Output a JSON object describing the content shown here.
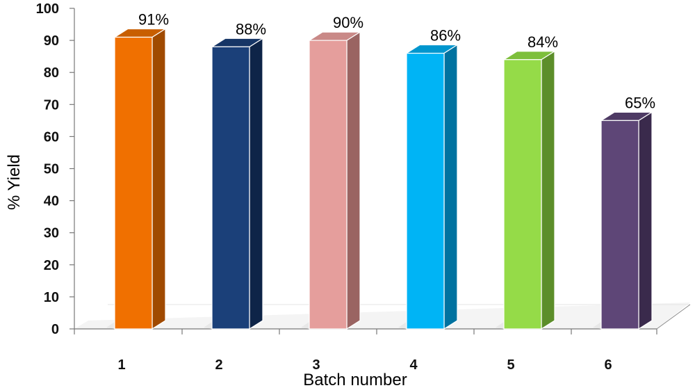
{
  "chart_data": {
    "type": "bar",
    "style": "3d-column",
    "title": "",
    "xlabel": "Batch number",
    "ylabel": "% Yield",
    "categories": [
      "1",
      "2",
      "3",
      "4",
      "5",
      "6"
    ],
    "values": [
      91,
      88,
      90,
      86,
      84,
      65
    ],
    "data_labels": [
      "91%",
      "88%",
      "90%",
      "86%",
      "84%",
      "65%"
    ],
    "ylim": [
      0,
      100
    ],
    "yticks": [
      0,
      10,
      20,
      30,
      40,
      50,
      60,
      70,
      80,
      90,
      100
    ],
    "grid": false,
    "legend": "none",
    "colors": [
      {
        "front": "#F07000",
        "side": "#A04A00",
        "top": "#C85E00"
      },
      {
        "front": "#1B4079",
        "side": "#0E2448",
        "top": "#163566"
      },
      {
        "front": "#E59E9C",
        "side": "#9A6462",
        "top": "#C98987"
      },
      {
        "front": "#00B4F5",
        "side": "#0072A0",
        "top": "#0096CE"
      },
      {
        "front": "#95DB48",
        "side": "#5C8E2A",
        "top": "#7DBF3B"
      },
      {
        "front": "#5E4677",
        "side": "#3A2A4C",
        "top": "#4E3A64"
      }
    ]
  }
}
